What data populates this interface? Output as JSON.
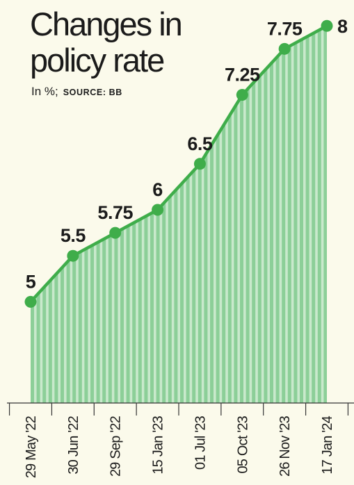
{
  "title_lines": [
    "Changes in",
    "policy rate"
  ],
  "subtitle": "In %;",
  "source": "SOURCE: BB",
  "colors": {
    "background": "#fbfaeb",
    "line": "#3fad4a",
    "stripe": "#8ccf98",
    "area_light": "#c9e9cc",
    "axis": "#333333",
    "text": "#1b1b1b"
  },
  "chart_data": {
    "type": "line",
    "categories": [
      "29 May '22",
      "30 Jun '22",
      "29 Sep '22",
      "15 Jan '23",
      "01 Jul '23",
      "05 Oct '23",
      "26 Nov '23",
      "17 Jan '24"
    ],
    "series": [
      {
        "values": [
          5,
          5.5,
          5.75,
          6,
          6.5,
          7.25,
          7.75,
          8
        ],
        "labels": [
          "5",
          "5.5",
          "5.75",
          "6",
          "6.5",
          "7.25",
          "7.75",
          "8"
        ]
      }
    ],
    "x_axis": "date",
    "ylim": [
      3.9,
      8.1
    ],
    "area_fill": true,
    "marker": "circle",
    "grid": false,
    "legend": "none"
  }
}
